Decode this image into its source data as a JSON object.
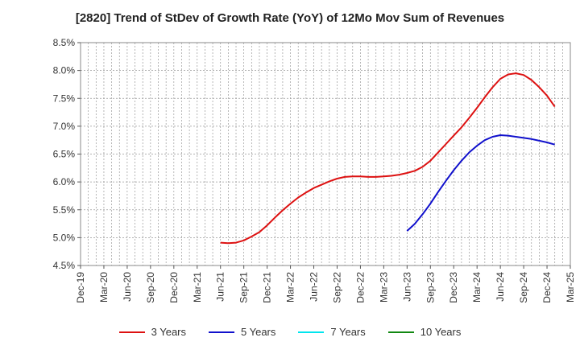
{
  "chart_data": {
    "type": "line",
    "title": "[2820]  Trend of StDev of Growth Rate (YoY) of 12Mo Mov Sum of Revenues",
    "xlabel": "",
    "ylabel": "",
    "ylim": [
      4.5,
      8.5
    ],
    "yticks": [
      4.5,
      5.0,
      5.5,
      6.0,
      6.5,
      7.0,
      7.5,
      8.0,
      8.5
    ],
    "ytick_labels": [
      "4.5%",
      "5.0%",
      "5.5%",
      "6.0%",
      "6.5%",
      "7.0%",
      "7.5%",
      "8.0%",
      "8.5%"
    ],
    "x_categories": [
      "Dec-19",
      "Mar-20",
      "Jun-20",
      "Sep-20",
      "Dec-20",
      "Mar-21",
      "Jun-21",
      "Sep-21",
      "Dec-21",
      "Mar-22",
      "Jun-22",
      "Sep-22",
      "Dec-22",
      "Mar-23",
      "Jun-23",
      "Sep-23",
      "Dec-23",
      "Mar-24",
      "Jun-24",
      "Sep-24",
      "Dec-24",
      "Mar-25"
    ],
    "grid": true,
    "legend_position": "bottom",
    "series": [
      {
        "name": "3 Years",
        "color": "#dd1111",
        "points": [
          [
            18,
            4.91
          ],
          [
            19,
            4.9
          ],
          [
            20,
            4.91
          ],
          [
            21,
            4.95
          ],
          [
            22,
            5.02
          ],
          [
            23,
            5.1
          ],
          [
            24,
            5.22
          ],
          [
            25,
            5.36
          ],
          [
            26,
            5.49
          ],
          [
            27,
            5.61
          ],
          [
            28,
            5.72
          ],
          [
            29,
            5.81
          ],
          [
            30,
            5.89
          ],
          [
            31,
            5.95
          ],
          [
            32,
            6.01
          ],
          [
            33,
            6.06
          ],
          [
            34,
            6.09
          ],
          [
            35,
            6.1
          ],
          [
            36,
            6.1
          ],
          [
            37,
            6.09
          ],
          [
            38,
            6.09
          ],
          [
            39,
            6.1
          ],
          [
            40,
            6.11
          ],
          [
            41,
            6.13
          ],
          [
            42,
            6.16
          ],
          [
            43,
            6.2
          ],
          [
            44,
            6.27
          ],
          [
            45,
            6.38
          ],
          [
            46,
            6.53
          ],
          [
            47,
            6.68
          ],
          [
            48,
            6.83
          ],
          [
            49,
            6.98
          ],
          [
            50,
            7.15
          ],
          [
            51,
            7.33
          ],
          [
            52,
            7.52
          ],
          [
            53,
            7.7
          ],
          [
            54,
            7.85
          ],
          [
            55,
            7.93
          ],
          [
            56,
            7.95
          ],
          [
            57,
            7.92
          ],
          [
            58,
            7.83
          ],
          [
            59,
            7.7
          ],
          [
            60,
            7.55
          ],
          [
            61,
            7.35
          ]
        ]
      },
      {
        "name": "5 Years",
        "color": "#1111cc",
        "points": [
          [
            42,
            5.12
          ],
          [
            43,
            5.25
          ],
          [
            44,
            5.42
          ],
          [
            45,
            5.61
          ],
          [
            46,
            5.82
          ],
          [
            47,
            6.02
          ],
          [
            48,
            6.21
          ],
          [
            49,
            6.38
          ],
          [
            50,
            6.53
          ],
          [
            51,
            6.65
          ],
          [
            52,
            6.75
          ],
          [
            53,
            6.81
          ],
          [
            54,
            6.84
          ],
          [
            55,
            6.83
          ],
          [
            56,
            6.81
          ],
          [
            57,
            6.79
          ],
          [
            58,
            6.77
          ],
          [
            59,
            6.74
          ],
          [
            60,
            6.71
          ],
          [
            61,
            6.67
          ]
        ]
      },
      {
        "name": "7 Years",
        "color": "#00e5ee",
        "points": []
      },
      {
        "name": "10 Years",
        "color": "#118811",
        "points": []
      }
    ]
  }
}
